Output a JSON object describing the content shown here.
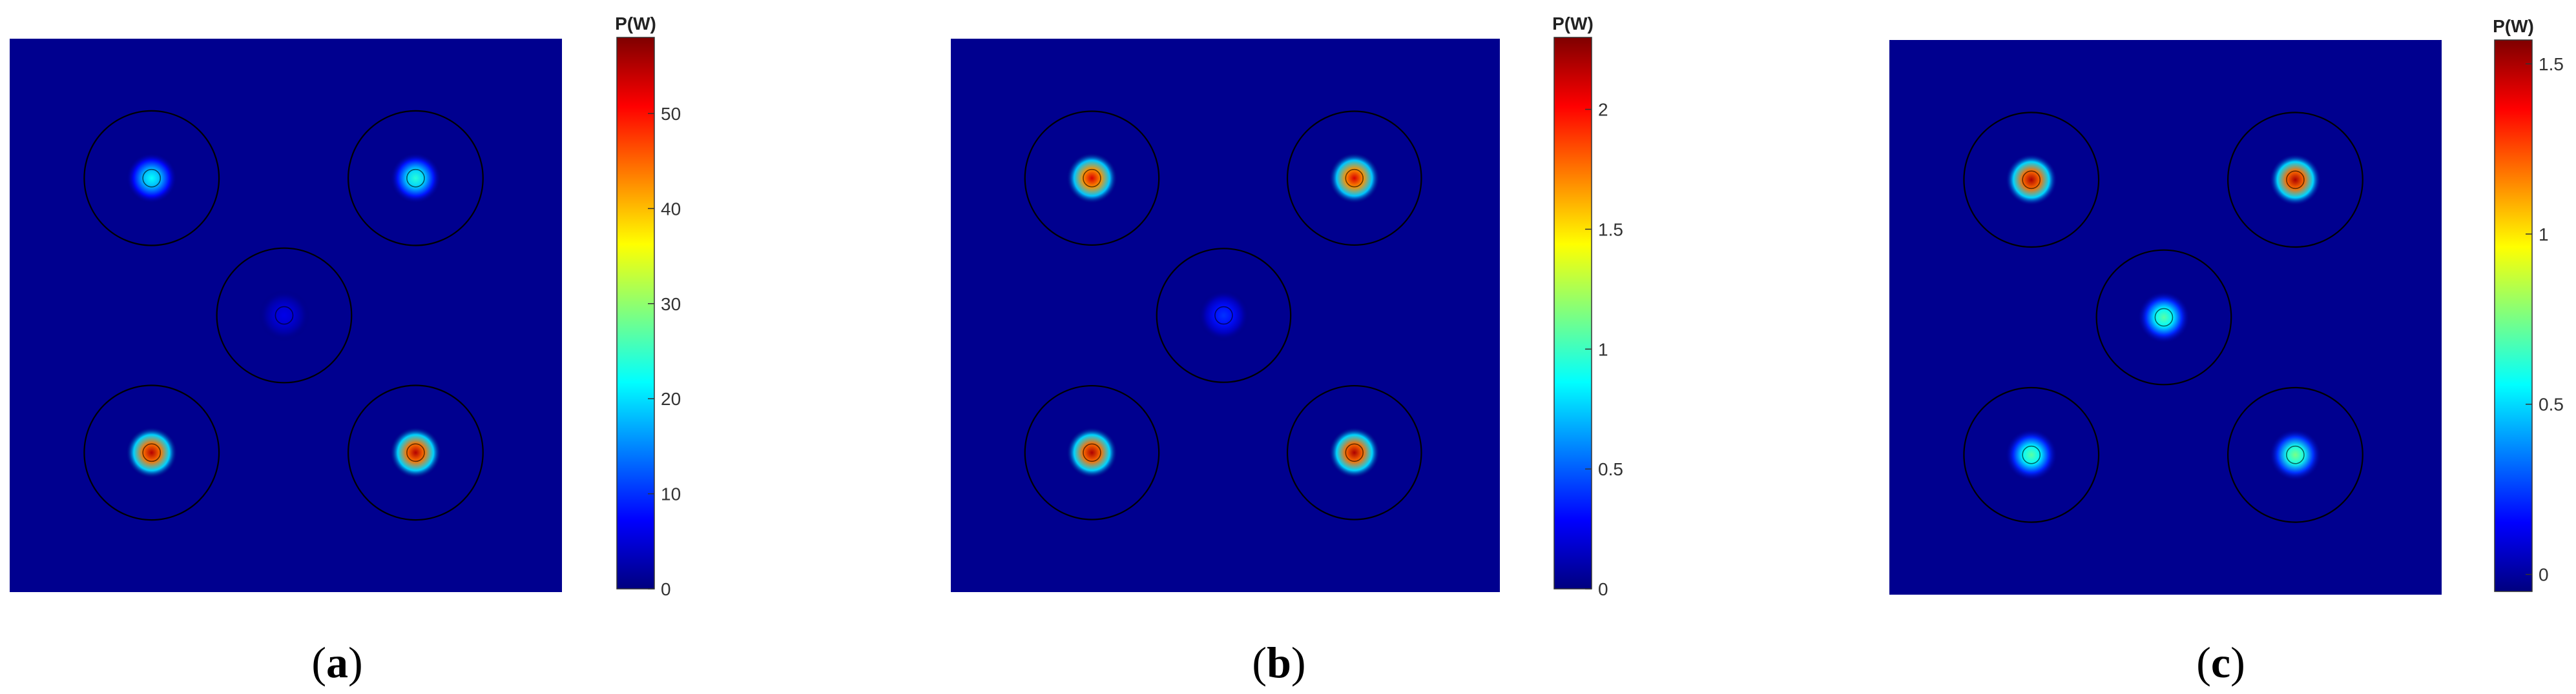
{
  "colors": {
    "background_field": "#00008f",
    "circle_stroke": "#000000",
    "jet_colormap": [
      "#00007f",
      "#0000ff",
      "#007fff",
      "#00ffff",
      "#7fff7f",
      "#ffff00",
      "#ff7f00",
      "#ff0000",
      "#7f0000"
    ]
  },
  "chart_data": [
    {
      "type": "heatmap",
      "panel_label": "a",
      "colorbar": {
        "title": "P(W)",
        "range": [
          0,
          58
        ],
        "ticks": [
          0,
          10,
          20,
          30,
          40,
          50
        ],
        "tick_labels": [
          "0",
          "10",
          "20",
          "30",
          "40",
          "50"
        ]
      },
      "cores": [
        {
          "name": "top-left",
          "peak": 22
        },
        {
          "name": "top-right",
          "peak": 24
        },
        {
          "name": "center",
          "peak": 6
        },
        {
          "name": "bottom-left",
          "peak": 55
        },
        {
          "name": "bottom-right",
          "peak": 55
        }
      ]
    },
    {
      "type": "heatmap",
      "panel_label": "b",
      "colorbar": {
        "title": "P(W)",
        "range": [
          0,
          2.3
        ],
        "ticks": [
          0,
          0.5,
          1,
          1.5,
          2
        ],
        "tick_labels": [
          "0",
          "0.5",
          "1",
          "1.5",
          "2"
        ]
      },
      "cores": [
        {
          "name": "top-left",
          "peak": 2.1
        },
        {
          "name": "top-right",
          "peak": 2.1
        },
        {
          "name": "center",
          "peak": 0.4
        },
        {
          "name": "bottom-left",
          "peak": 2.2
        },
        {
          "name": "bottom-right",
          "peak": 2.2
        }
      ]
    },
    {
      "type": "heatmap",
      "panel_label": "c",
      "colorbar": {
        "title": "P(W)",
        "range": [
          -0.05,
          1.57
        ],
        "ticks": [
          0,
          0.5,
          1,
          1.5
        ],
        "tick_labels": [
          "0",
          "0.5",
          "1",
          "1.5"
        ]
      },
      "cores": [
        {
          "name": "top-left",
          "peak": 1.5
        },
        {
          "name": "top-right",
          "peak": 1.5
        },
        {
          "name": "center",
          "peak": 0.7
        },
        {
          "name": "bottom-left",
          "peak": 0.7
        },
        {
          "name": "bottom-right",
          "peak": 0.75
        }
      ]
    }
  ],
  "captions": [
    {
      "open": "(",
      "letter": "a",
      "close": ")"
    },
    {
      "open": "(",
      "letter": "b",
      "close": ")"
    },
    {
      "open": "(",
      "letter": "c",
      "close": ")"
    }
  ]
}
